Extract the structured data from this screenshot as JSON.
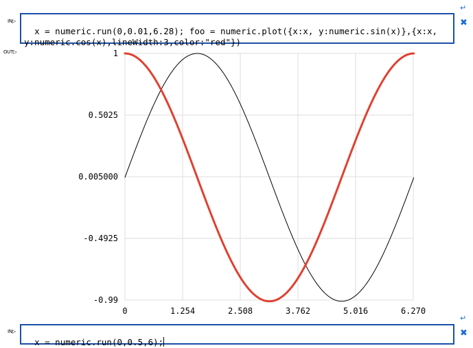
{
  "cells": [
    {
      "in_label": "IN",
      "code": "x = numeric.run(0,0.01,6.28); foo = numeric.plot({x:x, y:numeric.sin(x)},{x:x, y:numeric.cos(x),lineWidth:3,color:\"red\"})"
    },
    {
      "in_label": "IN",
      "code": "x = numeric.run(0,0.5,6);"
    }
  ],
  "output": {
    "out_label": "OUT"
  },
  "icons": {
    "close": "close-icon",
    "enter": "enter-icon",
    "prompt_arrow": "prompt-arrow-icon"
  },
  "colors": {
    "cell_border": "#1a4fa8",
    "icon": "#1a6ad8",
    "sin_series": "#000000",
    "cos_series": "#e04030",
    "grid": "#dddddd"
  },
  "chart_data": {
    "type": "line",
    "title": "",
    "xlabel": "",
    "ylabel": "",
    "xlim": [
      0,
      6.27
    ],
    "ylim": [
      -0.99,
      1
    ],
    "grid": true,
    "x_ticks": [
      "0",
      "1.254",
      "2.508",
      "3.762",
      "5.016",
      "6.270"
    ],
    "y_ticks": [
      "1",
      "0.5025",
      "0.005000",
      "-0.4925",
      "-0.99"
    ],
    "x_tick_values": [
      0,
      1.254,
      2.508,
      3.762,
      5.016,
      6.27
    ],
    "y_tick_values": [
      1,
      0.5025,
      0.005,
      -0.4925,
      -0.99
    ],
    "x": {
      "start": 0,
      "step": 0.01,
      "stop": 6.28
    },
    "series": [
      {
        "function": "sin",
        "color": "#000000",
        "lineWidth": 1
      },
      {
        "function": "cos",
        "color": "#e04030",
        "lineWidth": 3
      }
    ]
  }
}
